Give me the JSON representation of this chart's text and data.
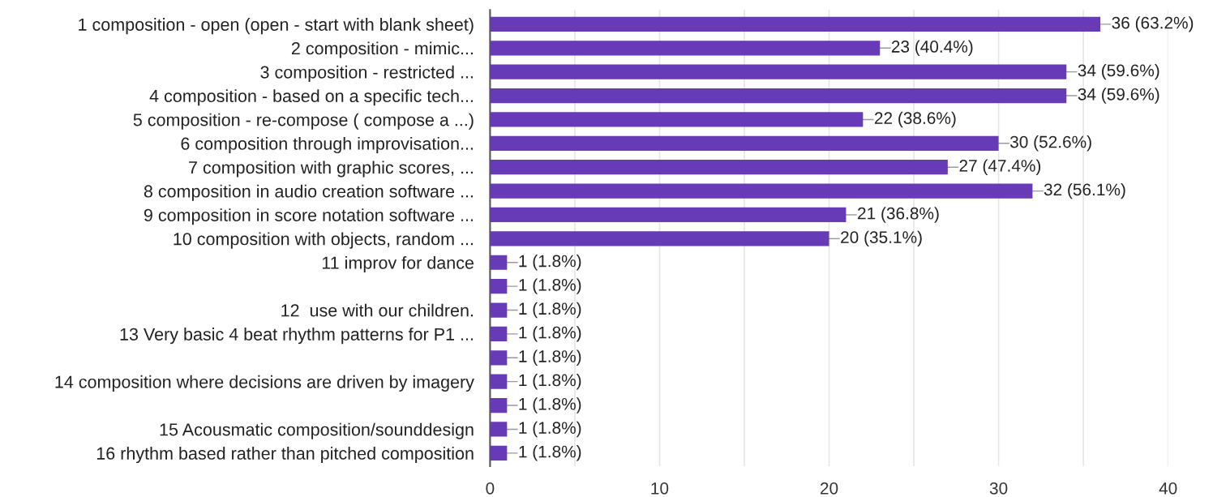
{
  "chart_data": {
    "type": "bar",
    "orientation": "horizontal",
    "categories": [
      "1 composition - open (open - start with blank sheet)",
      "2 composition - mimic...",
      "3 composition - restricted ...",
      "4 composition - based on a specific tech...",
      "5 composition - re-compose ( compose a ...)",
      "6 composition through improvisation...",
      "7 composition with graphic scores, ...",
      "8 composition in audio creation software ...",
      "9 composition in score notation software ...",
      "10 composition with objects, random ...",
      "11 improv for dance",
      null,
      "12  use with our children.",
      "13 Very basic 4 beat rhythm patterns for P1 ...",
      null,
      "14 composition where decisions are driven by imagery",
      null,
      "15 Acousmatic composition/sounddesign",
      "16 rhythm based rather than pitched composition"
    ],
    "values": [
      36,
      23,
      34,
      34,
      22,
      30,
      27,
      32,
      21,
      20,
      1,
      1,
      1,
      1,
      1,
      1,
      1,
      1,
      1
    ],
    "value_labels": [
      "36 (63.2%)",
      "23 (40.4%)",
      "34 (59.6%)",
      "34 (59.6%)",
      "22 (38.6%)",
      "30 (52.6%)",
      "27 (47.4%)",
      "32 (56.1%)",
      "21 (36.8%)",
      "20 (35.1%)",
      "1 (1.8%)",
      "1 (1.8%)",
      "1 (1.8%)",
      "1 (1.8%)",
      "1 (1.8%)",
      "1 (1.8%)",
      "1 (1.8%)",
      "1 (1.8%)",
      "1 (1.8%)"
    ],
    "color": "#673ab7",
    "xlim": [
      0,
      40
    ],
    "xticks": [
      0,
      {
        "value": 5,
        "label": null
      },
      10,
      {
        "value": 15,
        "label": null
      },
      20,
      {
        "value": 25,
        "label": null
      },
      30,
      {
        "value": 35,
        "label": null
      },
      40
    ],
    "grid": "x"
  }
}
